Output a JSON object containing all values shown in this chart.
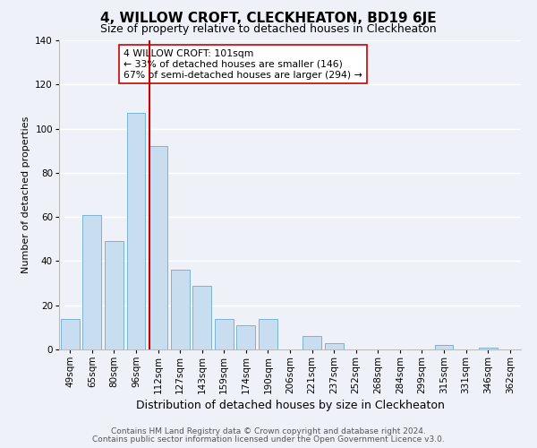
{
  "title": "4, WILLOW CROFT, CLECKHEATON, BD19 6JE",
  "subtitle": "Size of property relative to detached houses in Cleckheaton",
  "xlabel": "Distribution of detached houses by size in Cleckheaton",
  "ylabel": "Number of detached properties",
  "bar_labels": [
    "49sqm",
    "65sqm",
    "80sqm",
    "96sqm",
    "112sqm",
    "127sqm",
    "143sqm",
    "159sqm",
    "174sqm",
    "190sqm",
    "206sqm",
    "221sqm",
    "237sqm",
    "252sqm",
    "268sqm",
    "284sqm",
    "299sqm",
    "315sqm",
    "331sqm",
    "346sqm",
    "362sqm"
  ],
  "bar_values": [
    14,
    61,
    49,
    107,
    92,
    36,
    29,
    14,
    11,
    14,
    0,
    6,
    3,
    0,
    0,
    0,
    0,
    2,
    0,
    1,
    0
  ],
  "bar_color": "#c8ddf0",
  "bar_edge_color": "#7ab4d4",
  "vline_x_idx": 3.62,
  "vline_color": "#cc0000",
  "ylim": [
    0,
    140
  ],
  "yticks": [
    0,
    20,
    40,
    60,
    80,
    100,
    120,
    140
  ],
  "annotation_text": "4 WILLOW CROFT: 101sqm\n← 33% of detached houses are smaller (146)\n67% of semi-detached houses are larger (294) →",
  "annotation_box_color": "#ffffff",
  "annotation_box_edge": "#cc0000",
  "footer_line1": "Contains HM Land Registry data © Crown copyright and database right 2024.",
  "footer_line2": "Contains public sector information licensed under the Open Government Licence v3.0.",
  "background_color": "#eef2f8",
  "grid_color": "#ffffff",
  "title_fontsize": 11,
  "subtitle_fontsize": 9,
  "xlabel_fontsize": 9,
  "ylabel_fontsize": 8,
  "tick_fontsize": 7.5,
  "annotation_fontsize": 7.8,
  "footer_fontsize": 6.5
}
